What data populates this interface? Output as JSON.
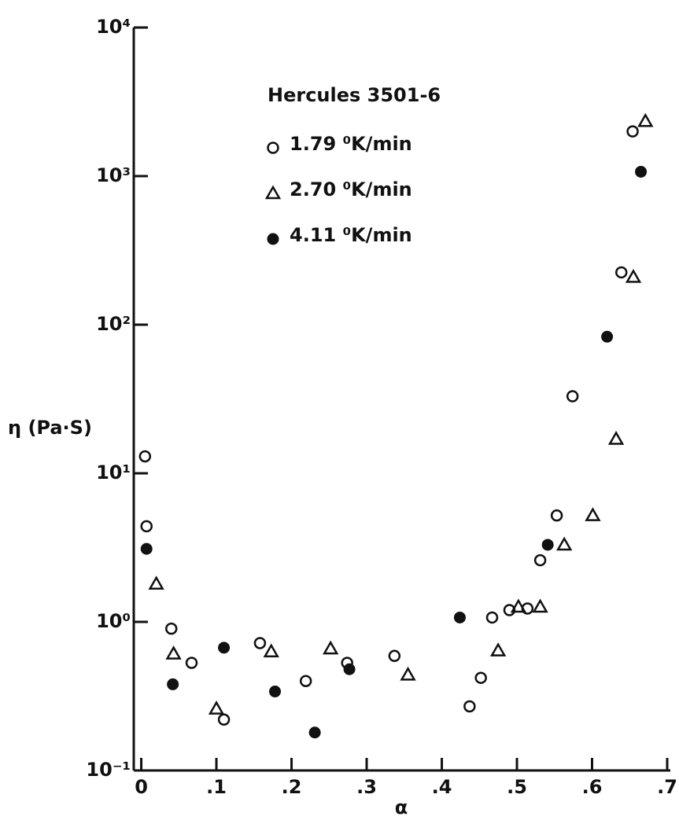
{
  "chart_data": {
    "type": "scatter",
    "title": "Hercules 3501-6",
    "x_label": "α",
    "y_label": "η (Pa·S)",
    "log_y": true,
    "xlim": [
      -0.01,
      0.7
    ],
    "ylim": [
      0.1,
      10000
    ],
    "xticks": [
      0,
      {
        "value": 0.1,
        "label": ".1"
      },
      {
        "value": 0.2,
        "label": ".2"
      },
      {
        "value": 0.3,
        "label": ".3"
      },
      {
        "value": 0.4,
        "label": ".4"
      },
      {
        "value": 0.5,
        "label": ".5"
      },
      {
        "value": 0.6,
        "label": ".6"
      },
      {
        "value": 0.7,
        "label": ".7"
      }
    ],
    "yticks": [
      {
        "value": 0.1,
        "label": "10⁻¹"
      },
      {
        "value": 1,
        "label": "10⁰"
      },
      {
        "value": 10,
        "label": "10¹"
      },
      {
        "value": 100,
        "label": "10²"
      },
      {
        "value": 1000,
        "label": "10³"
      },
      {
        "value": 10000,
        "label": "10⁴"
      }
    ],
    "series": [
      {
        "name": "1.79 ⁰K/min",
        "marker": "open-circle",
        "color": "#111111",
        "x": [
          0.005,
          0.007,
          0.04,
          0.067,
          0.11,
          0.158,
          0.219,
          0.274,
          0.337,
          0.437,
          0.452,
          0.467,
          0.49,
          0.514,
          0.531,
          0.553,
          0.574,
          0.639,
          0.654
        ],
        "values": [
          13,
          4.4,
          0.9,
          0.53,
          0.22,
          0.72,
          0.4,
          0.53,
          0.59,
          0.27,
          0.42,
          1.07,
          1.2,
          1.23,
          2.6,
          5.2,
          33,
          225,
          2000
        ]
      },
      {
        "name": "2.70 ⁰K/min",
        "marker": "triangle",
        "color": "#111111",
        "x": [
          0.02,
          0.043,
          0.1,
          0.173,
          0.252,
          0.355,
          0.475,
          0.502,
          0.531,
          0.563,
          0.601,
          0.632,
          0.655,
          0.671
        ],
        "values": [
          1.8,
          0.61,
          0.26,
          0.63,
          0.66,
          0.44,
          0.64,
          1.26,
          1.26,
          3.3,
          5.2,
          17,
          209,
          2340
        ]
      },
      {
        "name": "4.11 ⁰K/min",
        "marker": "filled-circle",
        "color": "#111111",
        "x": [
          0.007,
          0.042,
          0.11,
          0.178,
          0.231,
          0.277,
          0.424,
          0.541,
          0.62,
          0.665
        ],
        "values": [
          3.1,
          0.38,
          0.67,
          0.34,
          0.18,
          0.48,
          1.07,
          3.3,
          83,
          1070
        ]
      }
    ]
  }
}
